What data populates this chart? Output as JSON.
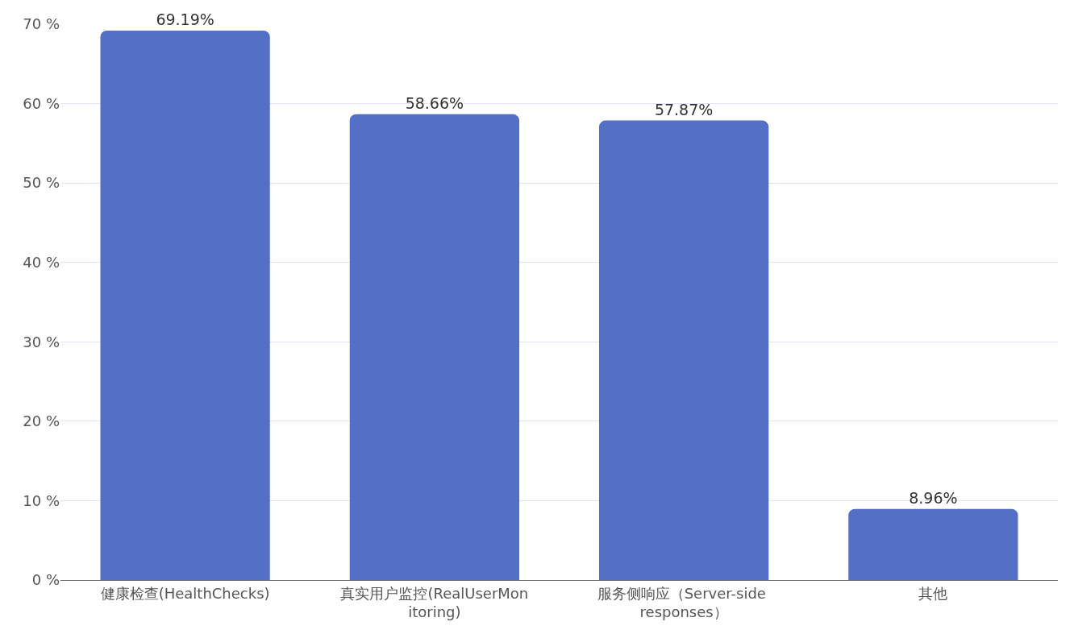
{
  "chart_data": {
    "type": "bar",
    "categories": [
      "健康检查(HealthChecks)",
      "真实用户监控(RealUserMonitoring)",
      "服务侧响应（Server-side responses）",
      "其他"
    ],
    "values": [
      69.19,
      58.66,
      57.87,
      8.96
    ],
    "value_labels": [
      "69.19%",
      "58.66%",
      "57.87%",
      "8.96%"
    ],
    "color": "#5470c6",
    "ylim": [
      0,
      70
    ],
    "yticks": [
      {
        "value": 0,
        "label": "0 %"
      },
      {
        "value": 10,
        "label": "10 %"
      },
      {
        "value": 20,
        "label": "20 %"
      },
      {
        "value": 30,
        "label": "30 %"
      },
      {
        "value": 40,
        "label": "40 %"
      },
      {
        "value": 50,
        "label": "50 %"
      },
      {
        "value": 60,
        "label": "60 %"
      },
      {
        "value": 70,
        "label": "70 %"
      }
    ],
    "grid": "y"
  }
}
